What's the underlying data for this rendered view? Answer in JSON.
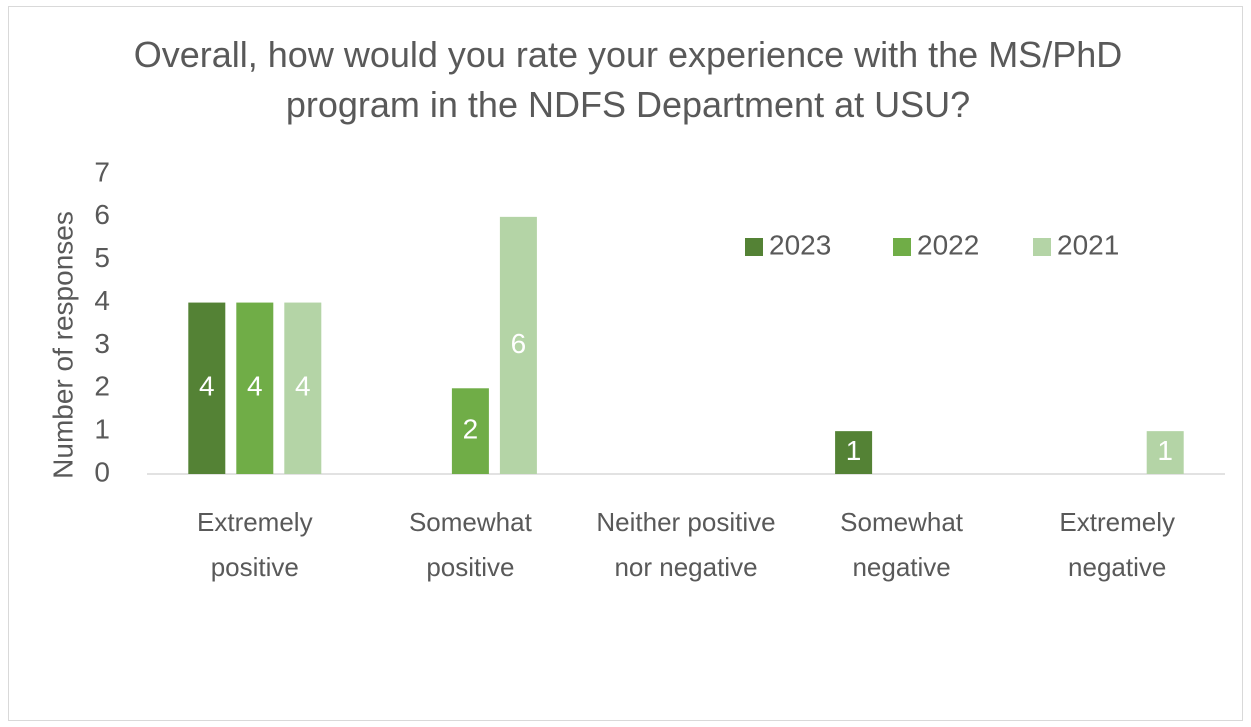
{
  "chart_data": {
    "type": "bar",
    "title": "Overall, how would you rate your experience with the MS/PhD program in the NDFS Department at USU?",
    "y_label": "Number of responses",
    "categories": [
      "Extremely positive",
      "Somewhat positive",
      "Neither positive nor negative",
      "Somewhat negative",
      "Extremely negative"
    ],
    "series": [
      {
        "name": "2023",
        "color": "#548235",
        "values": [
          4,
          0,
          0,
          1,
          0
        ]
      },
      {
        "name": "2022",
        "color": "#70ad47",
        "values": [
          4,
          2,
          0,
          0,
          0
        ]
      },
      {
        "name": "2021",
        "color": "#b4d4a6",
        "values": [
          4,
          6,
          0,
          0,
          1
        ]
      }
    ],
    "ylim": [
      0,
      7
    ],
    "yticks": [
      0,
      1,
      2,
      3,
      4,
      5,
      6,
      7
    ],
    "grid": false,
    "legend": "top-right"
  }
}
